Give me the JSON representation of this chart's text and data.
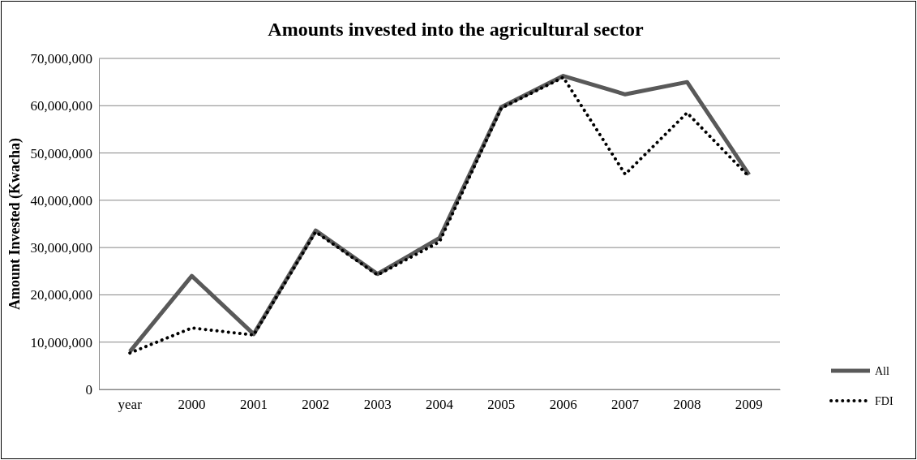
{
  "chart_data": {
    "type": "line",
    "title": "Amounts invested into the agricultural sector",
    "ylabel": "Amount Invested (Kwacha)",
    "categories": [
      "year",
      "2000",
      "2001",
      "2002",
      "2003",
      "2004",
      "2005",
      "2006",
      "2007",
      "2008",
      "2009"
    ],
    "series": [
      {
        "name": "All",
        "color": "#595959",
        "line_style": "solid",
        "values": [
          8000000,
          24000000,
          11700000,
          33600000,
          24400000,
          32000000,
          59700000,
          66300000,
          62400000,
          65000000,
          45400000
        ]
      },
      {
        "name": "FDI",
        "color": "#000000",
        "line_style": "dotted",
        "values": [
          7700000,
          13000000,
          11500000,
          33300000,
          24200000,
          31200000,
          59500000,
          66000000,
          45500000,
          58500000,
          45000000
        ]
      }
    ],
    "ylim": [
      0,
      70000000
    ],
    "yticks": [
      {
        "value": 0,
        "label": "0"
      },
      {
        "value": 10000000,
        "label": "10,000,000"
      },
      {
        "value": 20000000,
        "label": "20,000,000"
      },
      {
        "value": 30000000,
        "label": "30,000,000"
      },
      {
        "value": 40000000,
        "label": "40,000,000"
      },
      {
        "value": 50000000,
        "label": "50,000,000"
      },
      {
        "value": 60000000,
        "label": "60,000,000"
      },
      {
        "value": 70000000,
        "label": "70,000,000"
      }
    ],
    "grid": "y",
    "legend": "bottom right",
    "marker": "none"
  }
}
